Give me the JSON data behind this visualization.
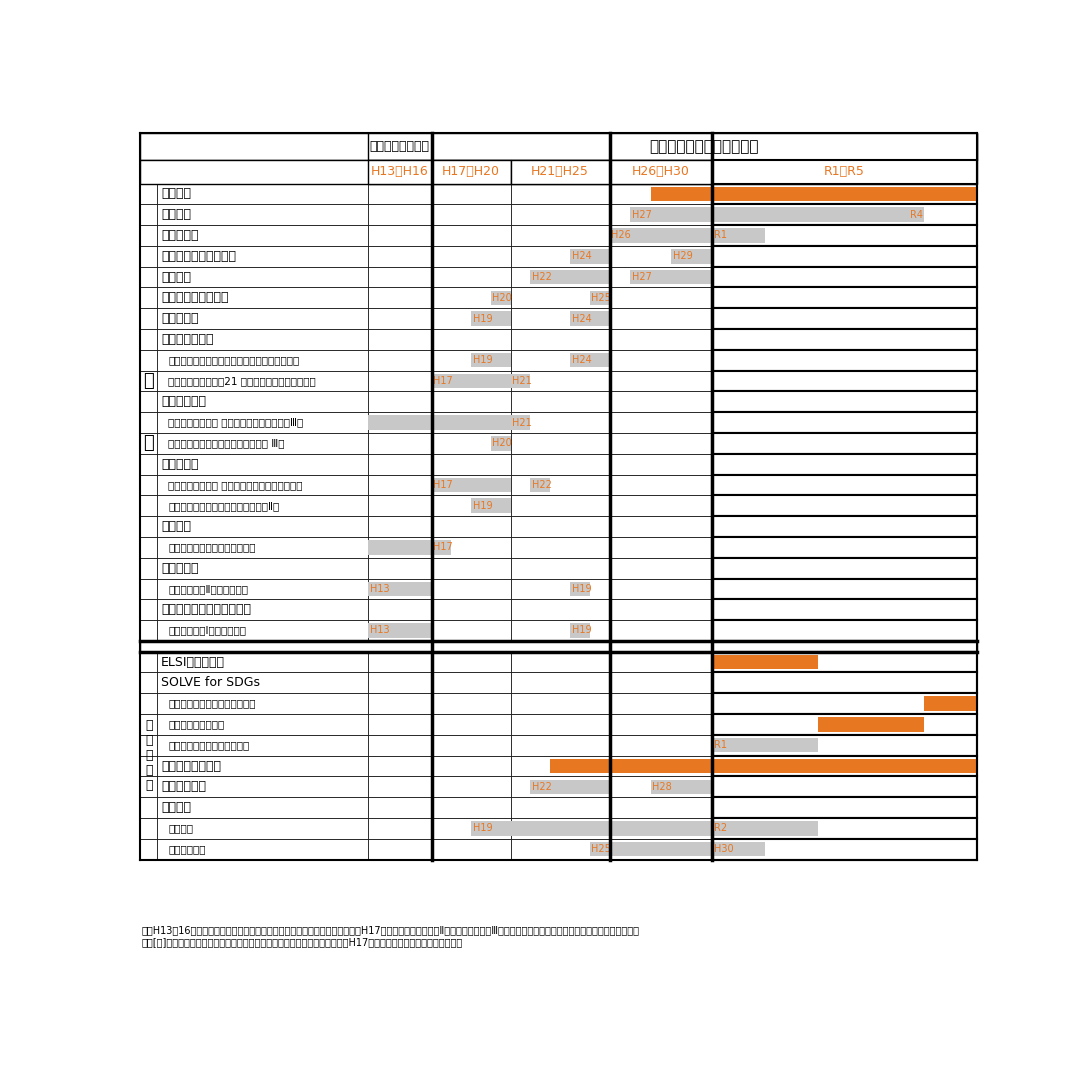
{
  "title_row1_left": "社会技術システム",
  "title_row1_right": "社会技術研究開発センター",
  "period_labels": [
    "H13～H16",
    "H17～H20",
    "H21～H25",
    "H26～H30",
    "R1～R5"
  ],
  "bg_color": "#ffffff",
  "gray_color": "#c8c8c8",
  "orange_color": "#e87722",
  "text_color": "#000000",
  "orange_text": "#e87722",
  "note1": "注：H13～16は、ミッションＰＧと公募型ＰＧの区分で研究開発が推進され、H17年以降ミッションＰＧⅡは情報と社会の、Ⅲは脳科学と社会の計画型研究開発として継続された。",
  "note2": "注：[　]付きは、社会技術システム時代の名称や用語。ミッションＰＧＩは、H17年度の改組の前後ともに同一名称。"
}
